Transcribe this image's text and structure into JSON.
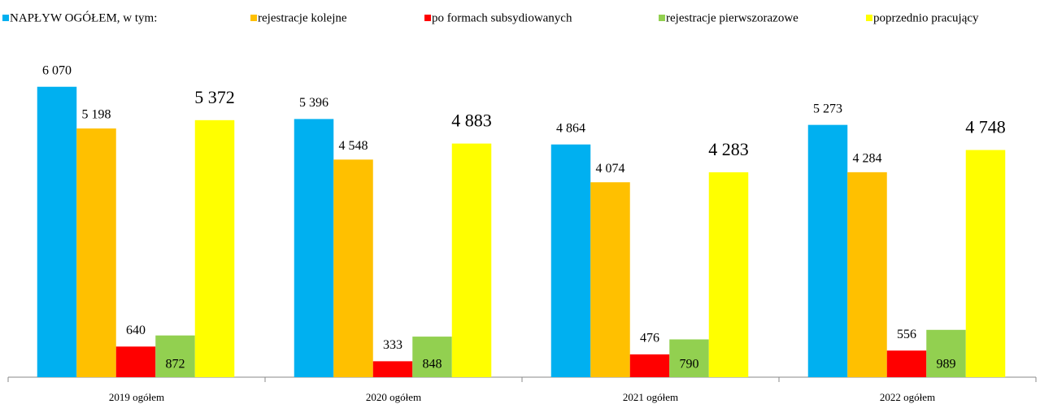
{
  "chart_data": {
    "type": "bar",
    "categories": [
      "2019 ogółem",
      "2020 ogółem",
      "2021 ogółem",
      "2022 ogółem"
    ],
    "series": [
      {
        "name": "NAPŁYW OGÓŁEM, w tym:",
        "color": "#00b0f0",
        "values": [
          6070,
          5396,
          4864,
          5273
        ],
        "value_labels": [
          "6 070",
          "5 396",
          "4 864",
          "5 273"
        ]
      },
      {
        "name": "rejestracje kolejne",
        "color": "#ffc000",
        "values": [
          5198,
          4548,
          4074,
          4284
        ],
        "value_labels": [
          "5 198",
          "4 548",
          "4 074",
          "4 284"
        ]
      },
      {
        "name": "po formach subsydiowanych",
        "color": "#ff0000",
        "values": [
          640,
          333,
          476,
          556
        ],
        "value_labels": [
          "640",
          "333",
          "476",
          "556"
        ]
      },
      {
        "name": "rejestracje pierwszorazowe",
        "color": "#92d050",
        "values": [
          872,
          848,
          790,
          989
        ],
        "value_labels": [
          "872",
          "848",
          "790",
          "989"
        ]
      },
      {
        "name": "poprzednio pracujący",
        "color": "#ffff00",
        "values": [
          5372,
          4883,
          4283,
          4748
        ],
        "value_labels": [
          "5 372",
          "4 883",
          "4 283",
          "4 748"
        ]
      }
    ],
    "ylim": [
      0,
      7000
    ],
    "legend": "top"
  }
}
